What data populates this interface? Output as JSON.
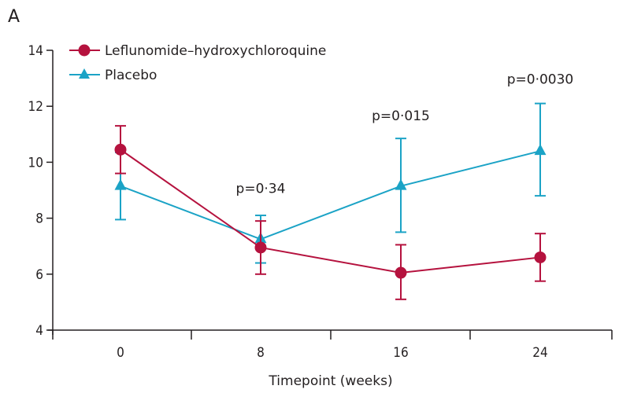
{
  "chart_data": {
    "type": "line",
    "panel_label": "A",
    "title": "",
    "xlabel": "Timepoint (weeks)",
    "ylabel": "",
    "x": [
      0,
      8,
      16,
      24
    ],
    "categories": [
      "0",
      "8",
      "16",
      "24"
    ],
    "ylim": [
      4,
      14
    ],
    "yticks": [
      4,
      6,
      8,
      10,
      12,
      14
    ],
    "grid": false,
    "legend_position": "top-left",
    "series": [
      {
        "name": "Leflunomide–hydroxychloroquine",
        "color": "#b5123e",
        "marker": "circle",
        "values": [
          10.45,
          6.95,
          6.05,
          6.6
        ],
        "error_upper": [
          11.3,
          7.9,
          7.05,
          7.45
        ],
        "error_lower": [
          9.6,
          6.0,
          5.1,
          5.75
        ]
      },
      {
        "name": "Placebo",
        "color": "#1ba3c6",
        "marker": "triangle",
        "values": [
          9.15,
          7.25,
          9.15,
          10.4
        ],
        "error_upper": [
          10.35,
          8.1,
          10.85,
          12.1
        ],
        "error_lower": [
          7.95,
          6.4,
          7.5,
          8.8
        ]
      }
    ],
    "annotations": [
      {
        "x": 8,
        "text": "p=0·34",
        "y": 8.9
      },
      {
        "x": 16,
        "text": "p=0·015",
        "y": 11.5
      },
      {
        "x": 24,
        "text": "p=0·0030",
        "y": 12.8
      }
    ]
  }
}
